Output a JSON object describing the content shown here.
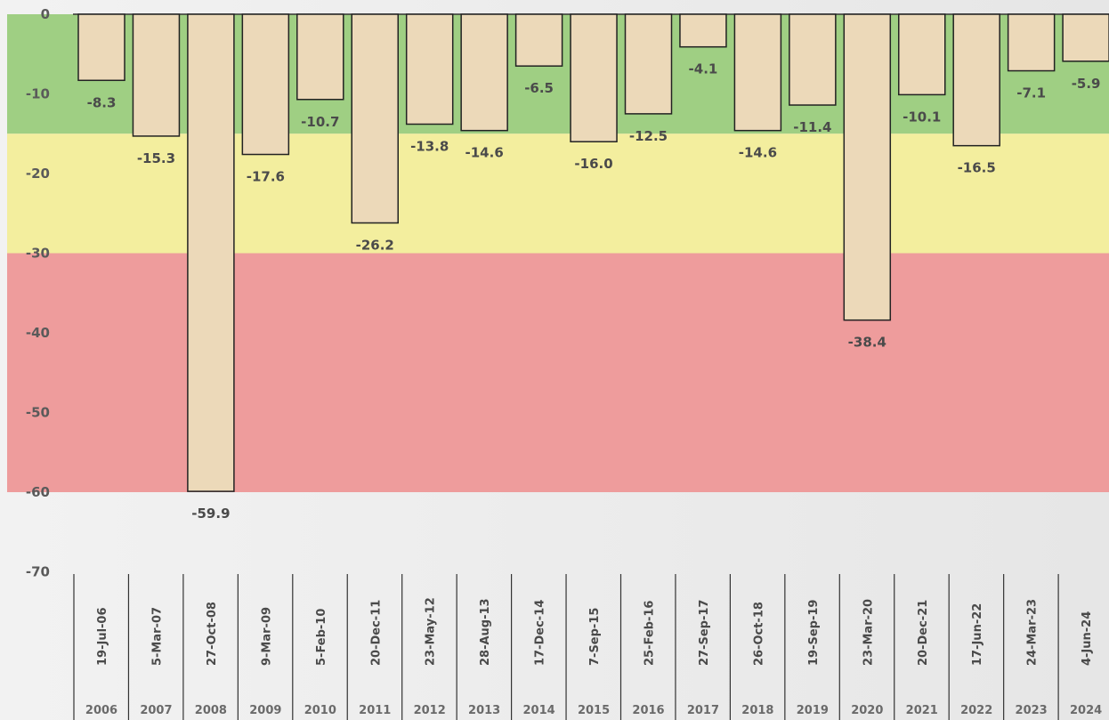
{
  "chart_data": {
    "type": "bar",
    "title": "",
    "xlabel": "",
    "ylabel": "",
    "ylim": [
      -70,
      0
    ],
    "yticks": [
      "0",
      "-10",
      "-20",
      "-30",
      "-40",
      "-50",
      "-60",
      "-70"
    ],
    "bands": [
      {
        "from": 0,
        "to": -15,
        "color": "#9fcf83"
      },
      {
        "from": -15,
        "to": -30,
        "color": "#f3ee9e"
      },
      {
        "from": -30,
        "to": -60,
        "color": "#ee9c9c"
      }
    ],
    "colors": {
      "bar_fill": "#ecd9b9",
      "bar_stroke": "#222222"
    },
    "categories": [
      "19-Jul-06",
      "5-Mar-07",
      "27-Oct-08",
      "9-Mar-09",
      "5-Feb-10",
      "20-Dec-11",
      "23-May-12",
      "28-Aug-13",
      "17-Dec-14",
      "7-Sep-15",
      "25-Feb-16",
      "27-Sep-17",
      "26-Oct-18",
      "19-Sep-19",
      "23-Mar-20",
      "20-Dec-21",
      "17-Jun-22",
      "24-Mar-23",
      "4-Jun-24"
    ],
    "years": [
      "2006",
      "2007",
      "2008",
      "2009",
      "2010",
      "2011",
      "2012",
      "2013",
      "2014",
      "2015",
      "2016",
      "2017",
      "2018",
      "2019",
      "2020",
      "2021",
      "2022",
      "2023",
      "2024"
    ],
    "values": [
      -8.3,
      -15.3,
      -59.9,
      -17.6,
      -10.7,
      -26.2,
      -13.8,
      -14.6,
      -6.5,
      -16.0,
      -12.5,
      -4.1,
      -14.6,
      -11.4,
      -38.4,
      -10.1,
      -16.5,
      -7.1,
      -5.9
    ],
    "value_labels": [
      "-8.3",
      "-15.3",
      "-59.9",
      "-17.6",
      "-10.7",
      "-26.2",
      "-13.8",
      "-14.6",
      "-6.5",
      "-16.0",
      "-12.5",
      "-4.1",
      "-14.6",
      "-11.4",
      "-38.4",
      "-10.1",
      "-16.5",
      "-7.1",
      "-5.9"
    ]
  }
}
